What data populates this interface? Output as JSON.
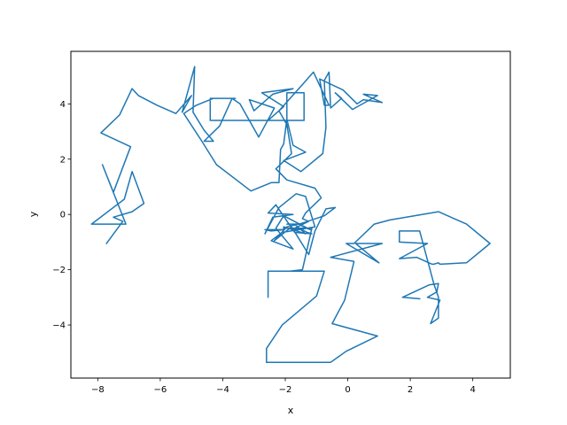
{
  "chart_data": {
    "type": "line",
    "title": "",
    "xlabel": "x",
    "ylabel": "y",
    "xlim": [
      -8.86,
      5.2
    ],
    "ylim": [
      -5.92,
      5.9
    ],
    "x_ticks": [
      -8,
      -6,
      -4,
      -2,
      0,
      2,
      4
    ],
    "y_ticks": [
      -4,
      -2,
      0,
      2,
      4
    ],
    "x_tick_labels": [
      "−8",
      "−6",
      "−4",
      "−2",
      "0",
      "2",
      "4"
    ],
    "y_tick_labels": [
      "−4",
      "−2",
      "0",
      "2",
      "4"
    ],
    "grid": false,
    "legend": "none",
    "line_color": "#1f77b4",
    "series": [
      {
        "x": [
          -7.72,
          -7.2,
          -7.5,
          -6.9,
          -6.52,
          -6.9,
          -7.15,
          -8.2,
          -7.1,
          -7.85,
          -7.5,
          -6.95,
          -7.9,
          -7.3,
          -6.9,
          -6.7,
          -6.1,
          -5.5,
          -5.0,
          -5.3,
          -4.9,
          -4.95,
          -4.6,
          -4.3,
          -4.6,
          -4.1,
          -3.7,
          -3.45,
          -2.85,
          -2.35,
          -3.15,
          -3.0,
          -2.4,
          -1.75,
          -2.75,
          -2.05,
          -2.55,
          -1.95,
          -1.95,
          -1.4,
          -1.4,
          -4.4,
          -4.4,
          -3.6,
          -4.3,
          -4.85,
          -5.25,
          -4.7,
          -4.2,
          -3.1,
          -2.45,
          -2.2,
          -2.15,
          -2.05,
          -1.95,
          -1.75,
          -1.35,
          -2.05,
          -1.5,
          -0.8,
          -0.7,
          -0.75,
          -0.6,
          -0.55,
          -0.2,
          -0.4,
          0.15,
          0.95,
          0.5,
          1.1,
          0.5,
          0.3,
          -0.15,
          -0.9,
          -0.75,
          -0.6,
          -1.1,
          -1.45,
          -2.2,
          -1.95,
          -1.8,
          -2.3,
          -1.95,
          -1.05,
          -0.85,
          -1.35,
          -1.45,
          -1.25,
          -1.8,
          -1.55,
          -1.3,
          -1.15,
          -1.7,
          -2.3,
          -2.55,
          -1.75,
          -2.4,
          -2.65,
          -2.2,
          -1.65,
          -1.35,
          -1.05,
          -2.1,
          -2.45,
          -1.75,
          -2.3,
          -2.05,
          -1.2,
          -1.6,
          -1.95,
          -2.35,
          -1.8,
          -1.25,
          -1.05,
          -0.7,
          -0.4,
          -0.75,
          -1.55,
          -1.95,
          -1.7,
          -1.35,
          -2.05,
          -2.05,
          -2.4,
          -2.65,
          -2.45,
          -2.05,
          -2.05,
          -1.15,
          -1.45,
          -1.85,
          -2.0,
          -2.0,
          -2.55,
          -2.55,
          -2.55,
          -0.75,
          -1.0,
          -2.1,
          -2.6,
          -2.6,
          -0.55,
          -0.05,
          0.95,
          -0.5,
          -0.1,
          0.2,
          -0.55,
          1.1,
          0.25,
          1.0,
          -0.05,
          0.2,
          0.85,
          1.35,
          2.9,
          3.8,
          4.55,
          3.8,
          2.95,
          2.9,
          2.75,
          2.7,
          2.2,
          1.65,
          2.55,
          1.65,
          1.65,
          2.3,
          2.75,
          2.9,
          2.9,
          2.65,
          2.95,
          2.55,
          2.85,
          2.9,
          2.6,
          1.75,
          2.3
        ],
        "y": [
          -1.05,
          -0.25,
          -0.1,
          0.1,
          0.4,
          1.55,
          0.55,
          -0.35,
          -0.35,
          1.8,
          0.8,
          2.45,
          2.95,
          3.6,
          4.55,
          4.3,
          3.95,
          3.65,
          4.3,
          3.7,
          5.35,
          3.7,
          3.05,
          2.65,
          2.65,
          3.2,
          4.2,
          4.0,
          2.8,
          3.85,
          4.15,
          3.75,
          4.35,
          4.55,
          4.4,
          3.9,
          3.4,
          3.4,
          4.4,
          4.4,
          3.4,
          3.4,
          4.2,
          4.2,
          4.2,
          3.95,
          3.65,
          2.7,
          1.8,
          0.85,
          1.15,
          1.15,
          2.35,
          2.55,
          3.45,
          2.5,
          2.25,
          1.95,
          1.55,
          2.2,
          3.15,
          4.85,
          5.15,
          3.85,
          4.2,
          4.4,
          3.8,
          4.3,
          4.35,
          4.05,
          4.15,
          4.0,
          4.5,
          4.9,
          3.95,
          3.95,
          5.15,
          4.7,
          3.75,
          3.25,
          2.2,
          1.65,
          1.25,
          0.95,
          0.6,
          0.05,
          -0.15,
          -0.25,
          -0.55,
          -0.5,
          -0.65,
          -0.7,
          -0.65,
          0.35,
          0.05,
          0.0,
          -0.1,
          -0.7,
          0.25,
          0.75,
          0.65,
          -0.45,
          -0.65,
          -0.95,
          -1.25,
          -0.5,
          -0.05,
          -0.55,
          -0.35,
          -0.45,
          -0.95,
          -0.45,
          -1.45,
          -0.6,
          0.2,
          0.25,
          -0.05,
          -0.35,
          -0.35,
          -0.35,
          -0.7,
          -0.45,
          -0.55,
          -0.55,
          -0.55,
          -0.6,
          -0.55,
          -0.5,
          -0.5,
          -2.0,
          -2.05,
          -2.05,
          -2.05,
          -2.05,
          -3.0,
          -2.05,
          -2.05,
          -2.95,
          -4.0,
          -4.85,
          -5.35,
          -5.35,
          -4.95,
          -4.4,
          -3.95,
          -3.1,
          -1.7,
          -1.55,
          -1.05,
          -1.05,
          -1.75,
          -1.05,
          -1.05,
          -0.35,
          -0.2,
          0.1,
          -0.35,
          -1.05,
          -1.75,
          -1.8,
          -1.75,
          -1.8,
          -1.8,
          -1.55,
          -1.6,
          -1.05,
          -1.0,
          -0.6,
          -0.6,
          -2.5,
          -3.0,
          -3.75,
          -3.95,
          -3.1,
          -3.0,
          -2.8,
          -2.5,
          -2.55,
          -3.0,
          -3.05
        ]
      }
    ]
  }
}
